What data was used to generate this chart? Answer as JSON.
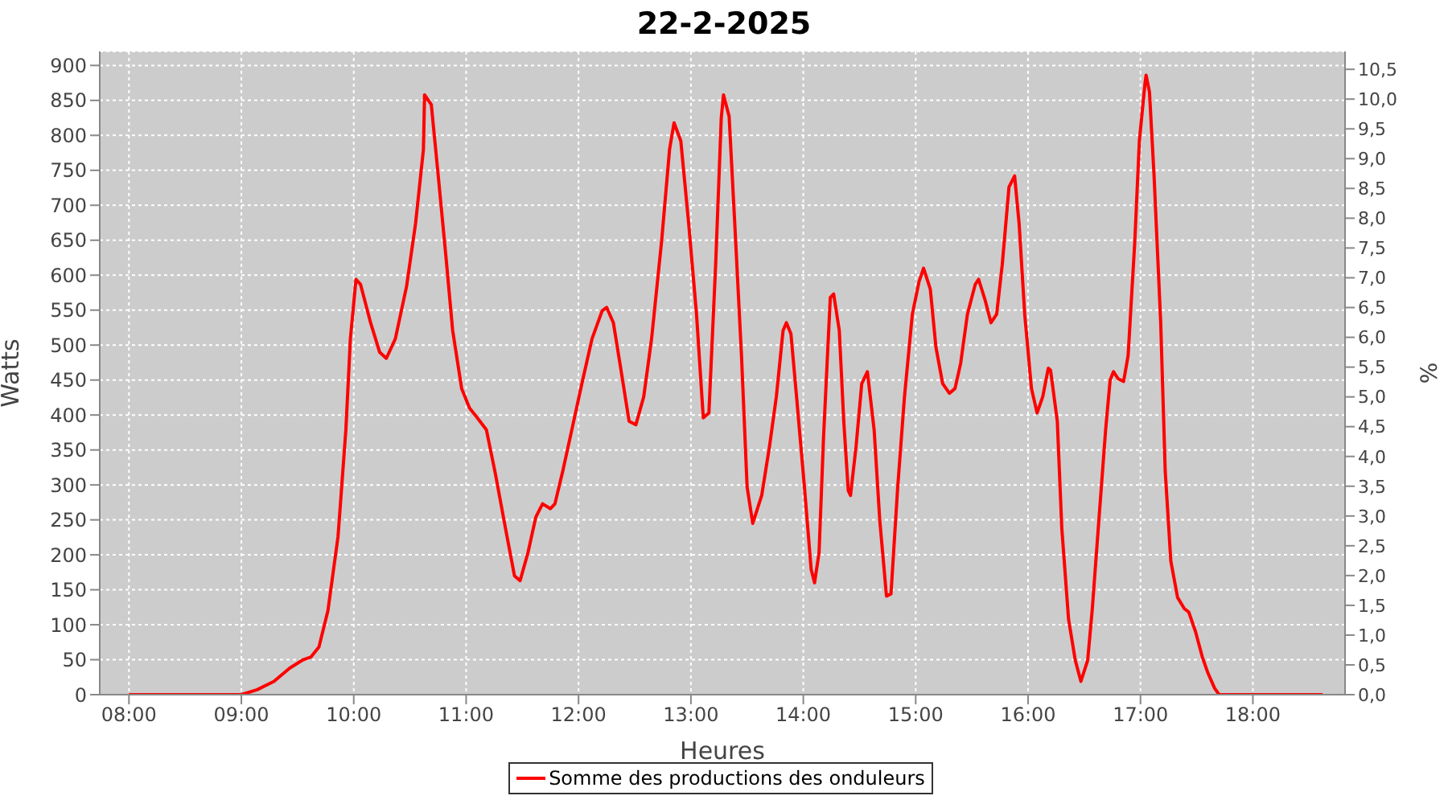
{
  "chart_data": {
    "type": "line",
    "title": "22-2-2025",
    "xlabel": "Heures",
    "ylabel": "Watts",
    "y2label": "%",
    "x": [
      8.0,
      9.0,
      9.14,
      9.29,
      9.43,
      9.55,
      9.62,
      9.69,
      9.77,
      9.86,
      9.93,
      9.97,
      10.02,
      10.06,
      10.15,
      10.23,
      10.29,
      10.37,
      10.47,
      10.55,
      10.62,
      10.63,
      10.69,
      10.75,
      10.82,
      10.88,
      10.96,
      11.03,
      11.09,
      11.18,
      11.26,
      11.35,
      11.43,
      11.48,
      11.55,
      11.62,
      11.68,
      11.75,
      11.79,
      11.86,
      11.95,
      12.03,
      12.12,
      12.21,
      12.25,
      12.31,
      12.38,
      12.45,
      12.51,
      12.58,
      12.65,
      12.74,
      12.81,
      12.85,
      12.91,
      12.98,
      13.05,
      13.11,
      13.16,
      13.22,
      13.27,
      13.29,
      13.34,
      13.39,
      13.45,
      13.5,
      13.55,
      13.63,
      13.7,
      13.76,
      13.82,
      13.85,
      13.89,
      13.94,
      14.01,
      14.07,
      14.1,
      14.14,
      14.18,
      14.24,
      14.27,
      14.32,
      14.36,
      14.4,
      14.42,
      14.47,
      14.52,
      14.57,
      14.63,
      14.68,
      14.74,
      14.78,
      14.84,
      14.9,
      14.97,
      15.03,
      15.07,
      15.13,
      15.18,
      15.24,
      15.3,
      15.35,
      15.4,
      15.46,
      15.53,
      15.56,
      15.62,
      15.67,
      15.72,
      15.77,
      15.83,
      15.88,
      15.92,
      15.97,
      16.03,
      16.08,
      16.13,
      16.18,
      16.2,
      16.26,
      16.3,
      16.36,
      16.42,
      16.47,
      16.53,
      16.57,
      16.63,
      16.69,
      16.73,
      16.76,
      16.8,
      16.85,
      16.89,
      16.95,
      16.99,
      17.04,
      17.05,
      17.08,
      17.12,
      17.18,
      17.22,
      17.27,
      17.33,
      17.39,
      17.43,
      17.49,
      17.55,
      17.6,
      17.66,
      17.7,
      18.62
    ],
    "series": [
      {
        "name": "Somme des productions des onduleurs",
        "color": "#ff0000",
        "values": [
          0,
          0,
          7,
          19,
          38,
          50,
          54,
          68,
          120,
          226,
          379,
          509,
          594,
          587,
          532,
          490,
          481,
          509,
          584,
          674,
          780,
          858,
          844,
          745,
          627,
          521,
          438,
          410,
          398,
          379,
          316,
          238,
          170,
          163,
          203,
          254,
          273,
          266,
          273,
          320,
          386,
          445,
          509,
          549,
          554,
          532,
          462,
          391,
          386,
          426,
          509,
          650,
          780,
          818,
          792,
          674,
          544,
          396,
          403,
          615,
          825,
          858,
          827,
          674,
          485,
          297,
          245,
          285,
          356,
          426,
          521,
          532,
          516,
          426,
          297,
          179,
          160,
          203,
          368,
          568,
          573,
          521,
          391,
          292,
          285,
          356,
          445,
          462,
          379,
          250,
          141,
          144,
          297,
          426,
          544,
          591,
          610,
          580,
          497,
          445,
          431,
          438,
          474,
          544,
          587,
          594,
          563,
          532,
          544,
          615,
          726,
          742,
          674,
          544,
          438,
          403,
          426,
          467,
          464,
          391,
          238,
          108,
          49,
          19,
          49,
          120,
          250,
          379,
          450,
          462,
          452,
          448,
          485,
          650,
          792,
          874,
          886,
          862,
          745,
          532,
          320,
          191,
          139,
          123,
          118,
          90,
          54,
          31,
          9,
          0,
          0
        ]
      }
    ],
    "xlim": [
      7.74,
      18.82
    ],
    "xticks": [
      {
        "value": 8,
        "label": "08:00"
      },
      {
        "value": 9,
        "label": "09:00"
      },
      {
        "value": 10,
        "label": "10:00"
      },
      {
        "value": 11,
        "label": "11:00"
      },
      {
        "value": 12,
        "label": "12:00"
      },
      {
        "value": 13,
        "label": "13:00"
      },
      {
        "value": 14,
        "label": "14:00"
      },
      {
        "value": 15,
        "label": "15:00"
      },
      {
        "value": 16,
        "label": "16:00"
      },
      {
        "value": 17,
        "label": "17:00"
      },
      {
        "value": 18,
        "label": "18:00"
      }
    ],
    "ylim": [
      0,
      920
    ],
    "yticks": [
      0,
      50,
      100,
      150,
      200,
      250,
      300,
      350,
      400,
      450,
      500,
      550,
      600,
      650,
      700,
      750,
      800,
      850,
      900
    ],
    "y2lim": [
      0,
      10.8
    ],
    "y2ticks": [
      {
        "value": 0,
        "label": "0,0"
      },
      {
        "value": 0.5,
        "label": "0,5"
      },
      {
        "value": 1,
        "label": "1,0"
      },
      {
        "value": 1.5,
        "label": "1,5"
      },
      {
        "value": 2,
        "label": "2,0"
      },
      {
        "value": 2.5,
        "label": "2,5"
      },
      {
        "value": 3,
        "label": "3,0"
      },
      {
        "value": 3.5,
        "label": "3,5"
      },
      {
        "value": 4,
        "label": "4,0"
      },
      {
        "value": 4.5,
        "label": "4,5"
      },
      {
        "value": 5,
        "label": "5,0"
      },
      {
        "value": 5.5,
        "label": "5,5"
      },
      {
        "value": 6,
        "label": "6,0"
      },
      {
        "value": 6.5,
        "label": "6,5"
      },
      {
        "value": 7,
        "label": "7,0"
      },
      {
        "value": 7.5,
        "label": "7,5"
      },
      {
        "value": 8,
        "label": "8,0"
      },
      {
        "value": 8.5,
        "label": "8,5"
      },
      {
        "value": 9,
        "label": "9,0"
      },
      {
        "value": 9.5,
        "label": "9,5"
      },
      {
        "value": 10,
        "label": "10,0"
      },
      {
        "value": 10.5,
        "label": "10,5"
      }
    ],
    "grid": true,
    "legend": "bottom",
    "marker": "none",
    "line_style": "solid"
  }
}
